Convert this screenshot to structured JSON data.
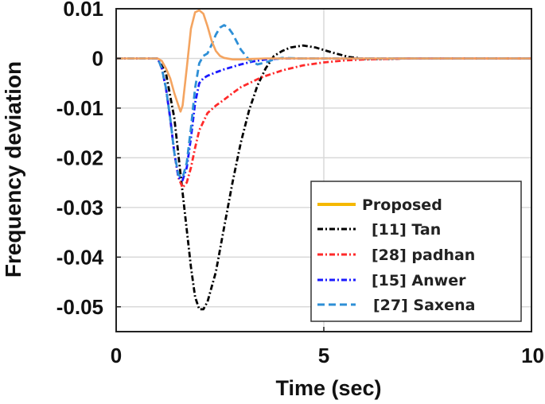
{
  "chart_data": {
    "type": "line",
    "xlabel": "Time (sec)",
    "ylabel": "Frequency deviation",
    "xlim": [
      0,
      10
    ],
    "ylim": [
      -0.055,
      0.01
    ],
    "xticks": [
      "0",
      "5",
      "10"
    ],
    "xtick_values": [
      0,
      5,
      10
    ],
    "yticks": [
      "0.01",
      "0",
      "-0.01",
      "-0.02",
      "-0.03",
      "-0.04",
      "-0.05"
    ],
    "ytick_values": [
      0.01,
      0,
      -0.01,
      -0.02,
      -0.03,
      -0.04,
      -0.05
    ],
    "grid": true,
    "legend_position": "bottom-right",
    "series": [
      {
        "name": "Proposed",
        "color": "#f4a460",
        "legend_color": "#f5b800",
        "style": "solid",
        "x": [
          0,
          1.0,
          1.1,
          1.2,
          1.3,
          1.4,
          1.5,
          1.55,
          1.6,
          1.7,
          1.8,
          1.9,
          2.0,
          2.1,
          2.2,
          2.3,
          2.4,
          2.5,
          2.6,
          2.8,
          3.0,
          3.3,
          3.6,
          4.0,
          5.0,
          10.0
        ],
        "y": [
          0,
          0,
          -0.0005,
          -0.002,
          -0.004,
          -0.007,
          -0.0095,
          -0.0107,
          -0.0095,
          -0.002,
          0.006,
          0.0093,
          0.0097,
          0.009,
          0.0065,
          0.0035,
          0.0015,
          0.0005,
          0.0001,
          -0.0002,
          -0.0002,
          -0.0001,
          0,
          0,
          0,
          0
        ]
      },
      {
        "name": "[11] Tan",
        "color": "#000000",
        "style": "dashdot",
        "x": [
          0,
          1.0,
          1.2,
          1.4,
          1.6,
          1.8,
          1.9,
          2.0,
          2.1,
          2.2,
          2.4,
          2.6,
          2.8,
          3.0,
          3.2,
          3.4,
          3.6,
          3.8,
          4.0,
          4.2,
          4.5,
          4.8,
          5.2,
          5.6,
          6.0,
          6.5,
          7.0,
          10.0
        ],
        "y": [
          0,
          0,
          -0.003,
          -0.012,
          -0.027,
          -0.042,
          -0.048,
          -0.0505,
          -0.0505,
          -0.049,
          -0.043,
          -0.034,
          -0.025,
          -0.017,
          -0.0105,
          -0.0055,
          -0.002,
          0.0005,
          0.0015,
          0.0022,
          0.0026,
          0.0022,
          0.0012,
          0.0003,
          -0.0001,
          -0.0001,
          0,
          0
        ]
      },
      {
        "name": "[28] padhan",
        "color": "#ff2a2a",
        "style": "dashdot",
        "x": [
          0,
          1.0,
          1.1,
          1.2,
          1.3,
          1.4,
          1.5,
          1.6,
          1.7,
          1.8,
          1.9,
          2.0,
          2.2,
          2.4,
          2.6,
          2.8,
          3.0,
          3.5,
          4.0,
          4.5,
          5.0,
          5.5,
          6.0,
          7.0,
          10.0
        ],
        "y": [
          0,
          0,
          -0.002,
          -0.006,
          -0.012,
          -0.019,
          -0.024,
          -0.026,
          -0.025,
          -0.022,
          -0.018,
          -0.0145,
          -0.011,
          -0.0095,
          -0.0083,
          -0.007,
          -0.0058,
          -0.0038,
          -0.0024,
          -0.0014,
          -0.0008,
          -0.0004,
          -0.0002,
          0,
          0
        ]
      },
      {
        "name": "[15] Anwer",
        "color": "#1a1aff",
        "style": "dashdot",
        "x": [
          0,
          1.0,
          1.1,
          1.2,
          1.3,
          1.4,
          1.5,
          1.6,
          1.7,
          1.8,
          1.9,
          2.0,
          2.1,
          2.2,
          2.4,
          2.6,
          2.8,
          3.0,
          3.3,
          3.6,
          4.0,
          5.0,
          10.0
        ],
        "y": [
          0,
          0,
          -0.002,
          -0.006,
          -0.012,
          -0.019,
          -0.024,
          -0.0245,
          -0.022,
          -0.016,
          -0.009,
          -0.005,
          -0.004,
          -0.0035,
          -0.0028,
          -0.0022,
          -0.0017,
          -0.0012,
          -0.0006,
          -0.0002,
          0,
          0,
          0
        ]
      },
      {
        "name": "[27] Saxena",
        "color": "#2e8fd6",
        "style": "dashed",
        "x": [
          0,
          1.0,
          1.1,
          1.2,
          1.3,
          1.4,
          1.5,
          1.6,
          1.7,
          1.8,
          1.9,
          2.0,
          2.1,
          2.2,
          2.3,
          2.4,
          2.5,
          2.6,
          2.7,
          2.8,
          2.9,
          3.0,
          3.2,
          3.4,
          3.6,
          3.8,
          4.0,
          4.5,
          5.0,
          10.0
        ],
        "y": [
          0,
          0,
          -0.002,
          -0.006,
          -0.012,
          -0.019,
          -0.0235,
          -0.024,
          -0.021,
          -0.014,
          -0.006,
          -0.001,
          0.0005,
          0.001,
          0.0028,
          0.0048,
          0.0062,
          0.0067,
          0.0062,
          0.005,
          0.0034,
          0.0018,
          -0.0003,
          -0.0012,
          -0.0008,
          -0.0002,
          0.0001,
          0,
          0,
          0
        ]
      }
    ]
  }
}
